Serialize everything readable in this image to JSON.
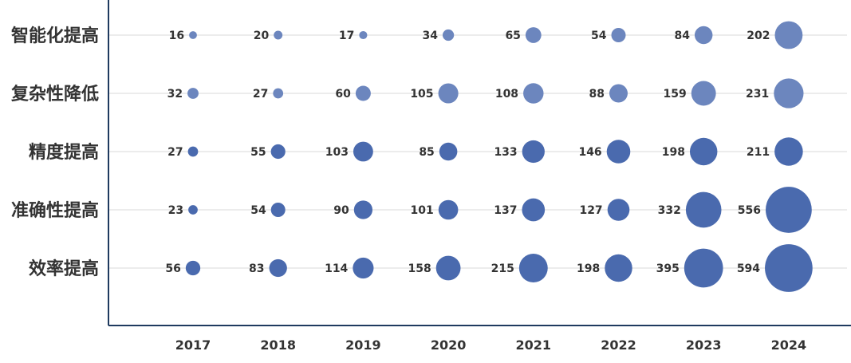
{
  "chart_data": {
    "type": "bubble",
    "title": "",
    "xlabel": "",
    "ylabel": "",
    "categories": [
      "2017",
      "2018",
      "2019",
      "2020",
      "2021",
      "2022",
      "2023",
      "2024"
    ],
    "series": [
      {
        "name": "智能化提高",
        "values": [
          16,
          20,
          17,
          34,
          65,
          54,
          84,
          202
        ]
      },
      {
        "name": "复杂性降低",
        "values": [
          32,
          27,
          60,
          105,
          108,
          88,
          159,
          231
        ]
      },
      {
        "name": "精度提高",
        "values": [
          27,
          55,
          103,
          85,
          133,
          146,
          198,
          211
        ]
      },
      {
        "name": "准确性提高",
        "values": [
          23,
          54,
          90,
          101,
          137,
          127,
          332,
          556
        ]
      },
      {
        "name": "效率提高",
        "values": [
          56,
          83,
          114,
          158,
          215,
          198,
          395,
          594
        ]
      }
    ],
    "grid": true,
    "colors": {
      "bubble": "#4a6aae",
      "bubble_light": "#6c86be",
      "axis": "#1f3a5f",
      "grid": "#d9d9d9"
    }
  }
}
